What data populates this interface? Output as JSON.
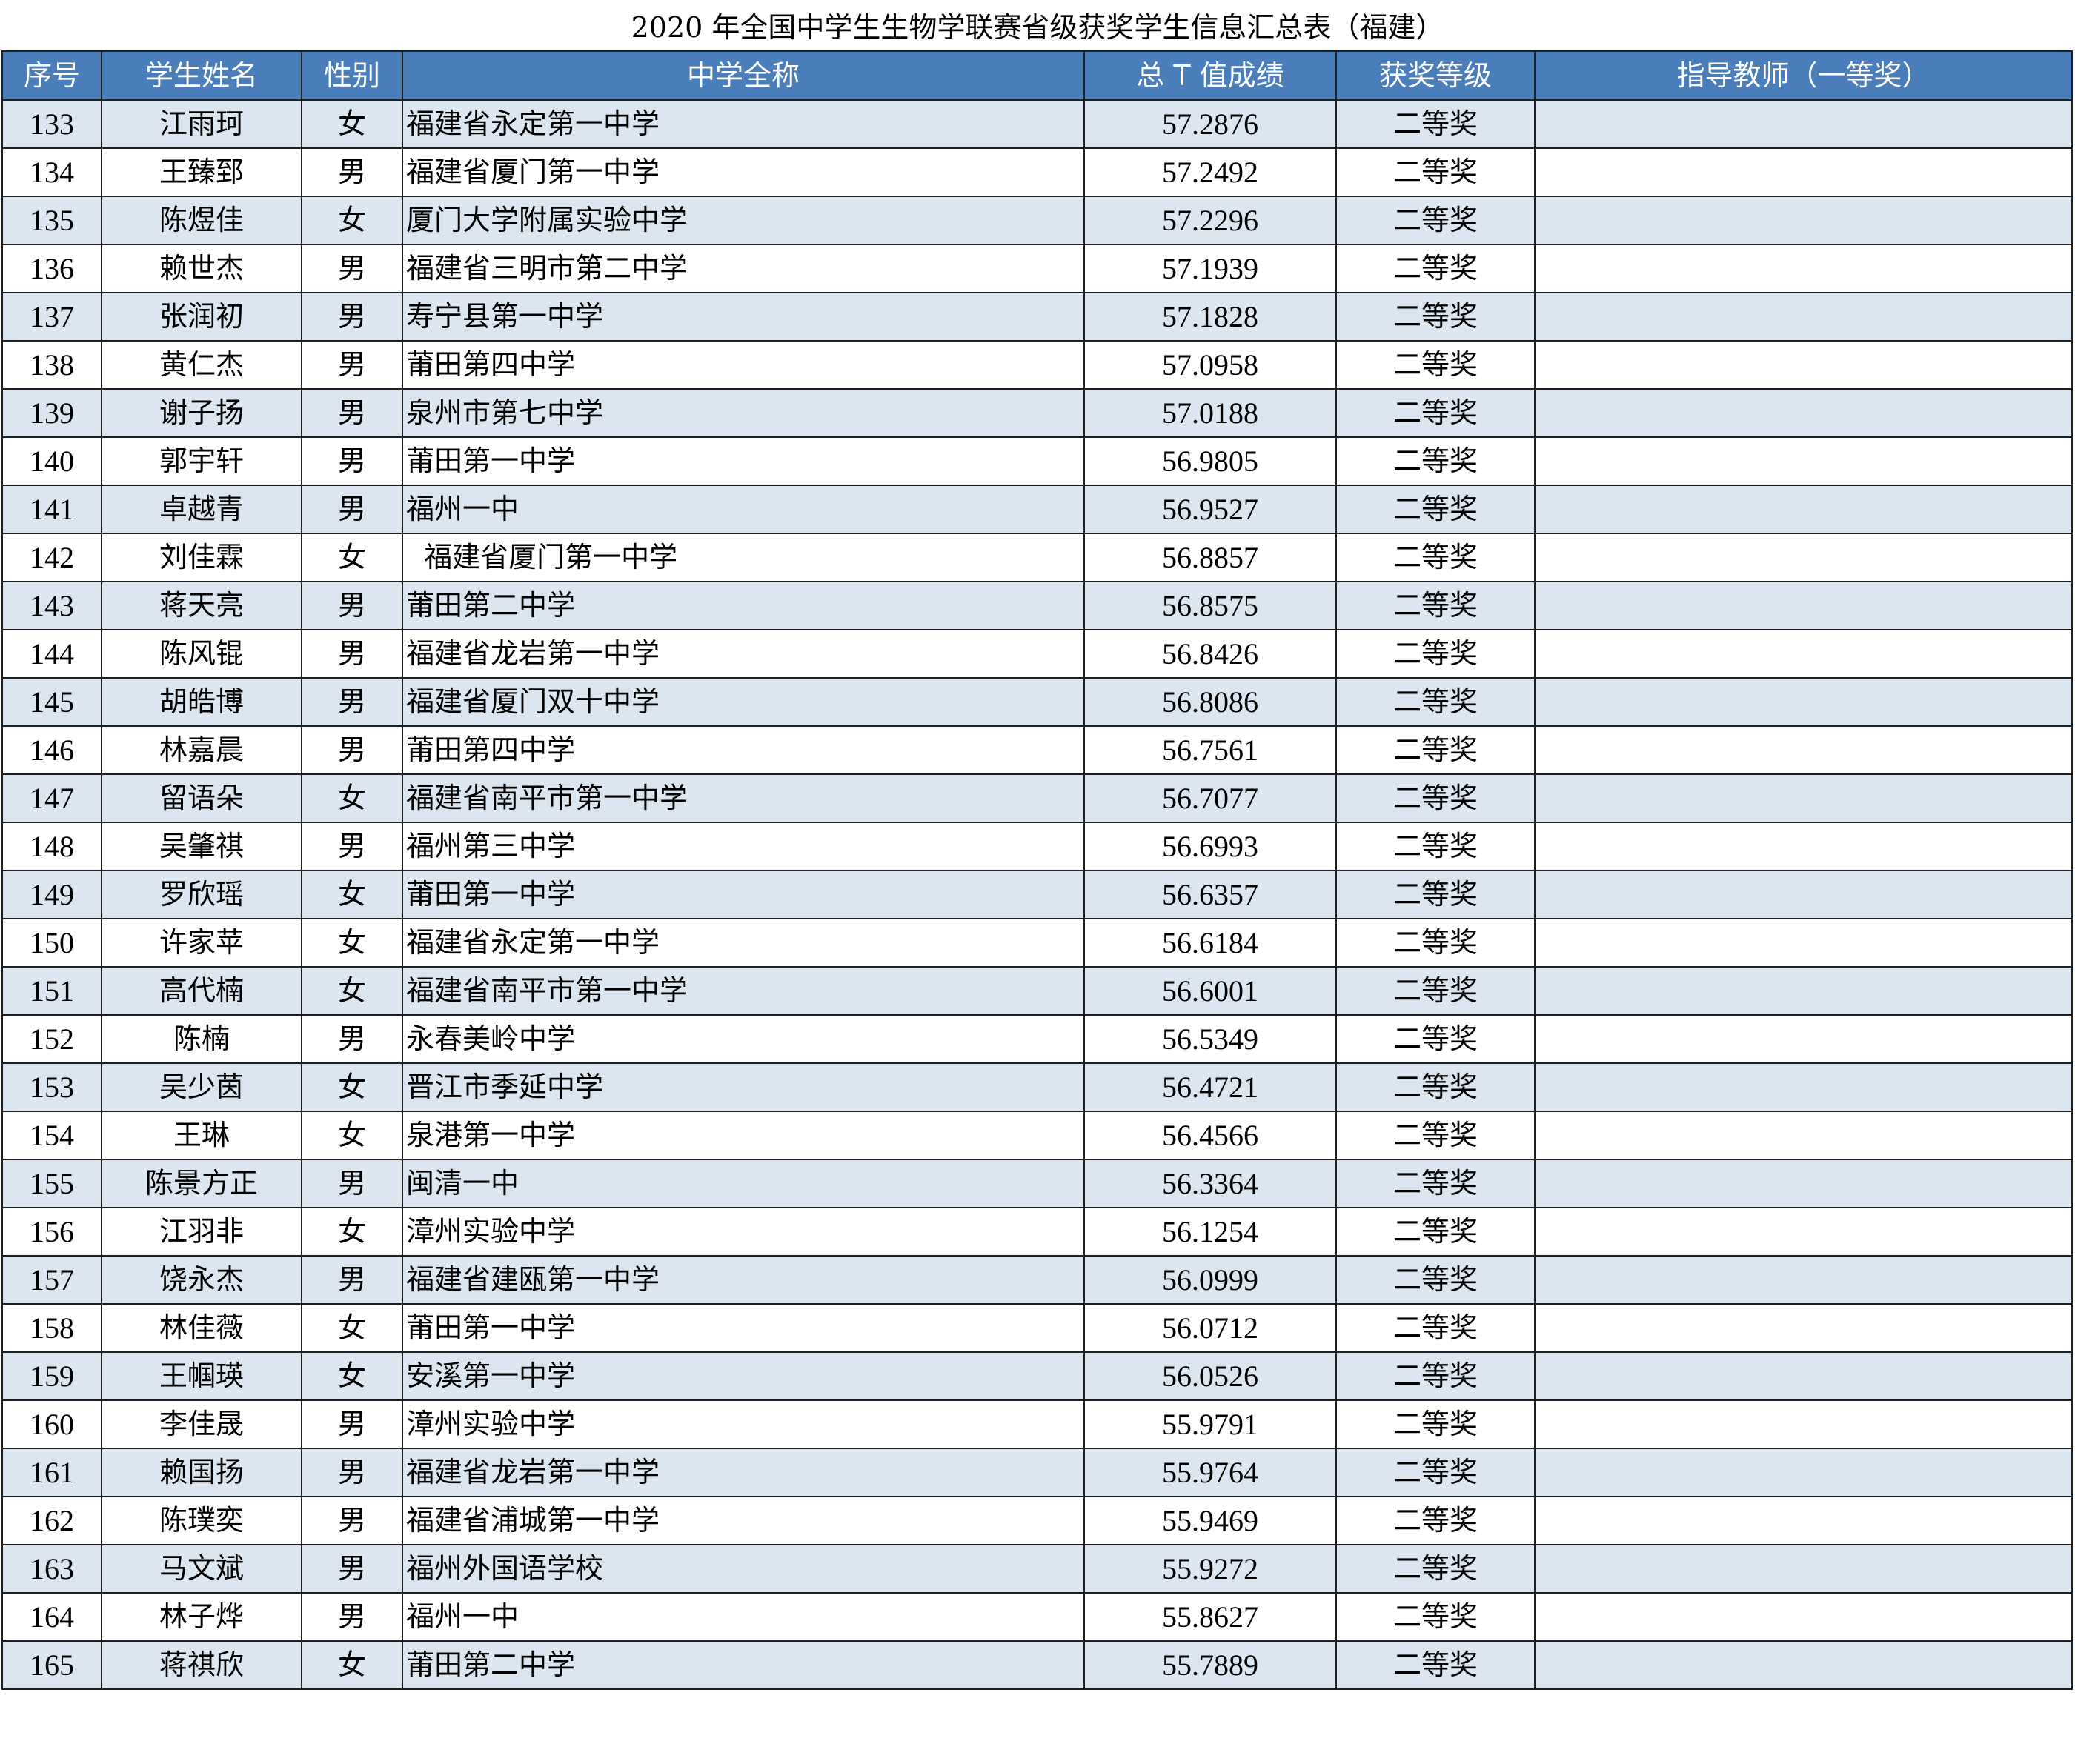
{
  "title": "2020 年全国中学生生物学联赛省级获奖学生信息汇总表（福建）",
  "colors": {
    "header_bg": "#4a7ebb",
    "header_text": "#ffffff",
    "row_alt_bg": "#dce6f1",
    "row_bg": "#ffffff",
    "border": "#1f1f1f"
  },
  "columns": [
    "序号",
    "学生姓名",
    "性别",
    "中学全称",
    "总 T 值成绩",
    "获奖等级",
    "指导教师（一等奖）"
  ],
  "rows": [
    {
      "no": "133",
      "name": "江雨珂",
      "gender": "女",
      "school": "福建省永定第一中学",
      "score": "57.2876",
      "level": "二等奖",
      "teacher": ""
    },
    {
      "no": "134",
      "name": "王臻郅",
      "gender": "男",
      "school": "福建省厦门第一中学",
      "score": "57.2492",
      "level": "二等奖",
      "teacher": ""
    },
    {
      "no": "135",
      "name": "陈煜佳",
      "gender": "女",
      "school": "厦门大学附属实验中学",
      "score": "57.2296",
      "level": "二等奖",
      "teacher": ""
    },
    {
      "no": "136",
      "name": "赖世杰",
      "gender": "男",
      "school": "福建省三明市第二中学",
      "score": "57.1939",
      "level": "二等奖",
      "teacher": ""
    },
    {
      "no": "137",
      "name": "张润初",
      "gender": "男",
      "school": "寿宁县第一中学",
      "score": "57.1828",
      "level": "二等奖",
      "teacher": ""
    },
    {
      "no": "138",
      "name": "黄仁杰",
      "gender": "男",
      "school": "莆田第四中学",
      "score": "57.0958",
      "level": "二等奖",
      "teacher": ""
    },
    {
      "no": "139",
      "name": "谢子扬",
      "gender": "男",
      "school": "泉州市第七中学",
      "score": "57.0188",
      "level": "二等奖",
      "teacher": ""
    },
    {
      "no": "140",
      "name": "郭宇轩",
      "gender": "男",
      "school": "莆田第一中学",
      "score": "56.9805",
      "level": "二等奖",
      "teacher": ""
    },
    {
      "no": "141",
      "name": "卓越青",
      "gender": "男",
      "school": "福州一中",
      "score": "56.9527",
      "level": "二等奖",
      "teacher": ""
    },
    {
      "no": "142",
      "name": "刘佳霖",
      "gender": "女",
      "school": "  福建省厦门第一中学",
      "score": "56.8857",
      "level": "二等奖",
      "teacher": ""
    },
    {
      "no": "143",
      "name": "蒋天亮",
      "gender": "男",
      "school": "莆田第二中学",
      "score": "56.8575",
      "level": "二等奖",
      "teacher": ""
    },
    {
      "no": "144",
      "name": "陈风锟",
      "gender": "男",
      "school": "福建省龙岩第一中学",
      "score": "56.8426",
      "level": "二等奖",
      "teacher": ""
    },
    {
      "no": "145",
      "name": "胡皓博",
      "gender": "男",
      "school": "福建省厦门双十中学",
      "score": "56.8086",
      "level": "二等奖",
      "teacher": ""
    },
    {
      "no": "146",
      "name": "林嘉晨",
      "gender": "男",
      "school": "莆田第四中学",
      "score": "56.7561",
      "level": "二等奖",
      "teacher": ""
    },
    {
      "no": "147",
      "name": "留语朵",
      "gender": "女",
      "school": "福建省南平市第一中学",
      "score": "56.7077",
      "level": "二等奖",
      "teacher": ""
    },
    {
      "no": "148",
      "name": "吴肇祺",
      "gender": "男",
      "school": "福州第三中学",
      "score": "56.6993",
      "level": "二等奖",
      "teacher": ""
    },
    {
      "no": "149",
      "name": "罗欣瑶",
      "gender": "女",
      "school": "莆田第一中学",
      "score": "56.6357",
      "level": "二等奖",
      "teacher": ""
    },
    {
      "no": "150",
      "name": "许家苹",
      "gender": "女",
      "school": "福建省永定第一中学",
      "score": "56.6184",
      "level": "二等奖",
      "teacher": ""
    },
    {
      "no": "151",
      "name": "高代楠",
      "gender": "女",
      "school": "福建省南平市第一中学",
      "score": "56.6001",
      "level": "二等奖",
      "teacher": ""
    },
    {
      "no": "152",
      "name": "陈楠",
      "gender": "男",
      "school": "永春美岭中学",
      "score": "56.5349",
      "level": "二等奖",
      "teacher": ""
    },
    {
      "no": "153",
      "name": "吴少茵",
      "gender": "女",
      "school": "晋江市季延中学",
      "score": "56.4721",
      "level": "二等奖",
      "teacher": ""
    },
    {
      "no": "154",
      "name": "王琳",
      "gender": "女",
      "school": "泉港第一中学",
      "score": "56.4566",
      "level": "二等奖",
      "teacher": ""
    },
    {
      "no": "155",
      "name": "陈景方正",
      "gender": "男",
      "school": "闽清一中",
      "score": "56.3364",
      "level": "二等奖",
      "teacher": ""
    },
    {
      "no": "156",
      "name": "江羽非",
      "gender": "女",
      "school": "漳州实验中学",
      "score": "56.1254",
      "level": "二等奖",
      "teacher": ""
    },
    {
      "no": "157",
      "name": "饶永杰",
      "gender": "男",
      "school": "福建省建瓯第一中学",
      "score": "56.0999",
      "level": "二等奖",
      "teacher": ""
    },
    {
      "no": "158",
      "name": "林佳薇",
      "gender": "女",
      "school": "莆田第一中学",
      "score": "56.0712",
      "level": "二等奖",
      "teacher": ""
    },
    {
      "no": "159",
      "name": "王帼瑛",
      "gender": "女",
      "school": "安溪第一中学",
      "score": "56.0526",
      "level": "二等奖",
      "teacher": ""
    },
    {
      "no": "160",
      "name": "李佳晟",
      "gender": "男",
      "school": "漳州实验中学",
      "score": "55.9791",
      "level": "二等奖",
      "teacher": ""
    },
    {
      "no": "161",
      "name": "赖国扬",
      "gender": "男",
      "school": "福建省龙岩第一中学",
      "score": "55.9764",
      "level": "二等奖",
      "teacher": ""
    },
    {
      "no": "162",
      "name": "陈璞奕",
      "gender": "男",
      "school": "福建省浦城第一中学",
      "score": "55.9469",
      "level": "二等奖",
      "teacher": ""
    },
    {
      "no": "163",
      "name": "马文斌",
      "gender": "男",
      "school": "福州外国语学校",
      "score": "55.9272",
      "level": "二等奖",
      "teacher": ""
    },
    {
      "no": "164",
      "name": "林子烨",
      "gender": "男",
      "school": "福州一中",
      "score": "55.8627",
      "level": "二等奖",
      "teacher": ""
    },
    {
      "no": "165",
      "name": "蒋祺欣",
      "gender": "女",
      "school": "莆田第二中学",
      "score": "55.7889",
      "level": "二等奖",
      "teacher": ""
    }
  ]
}
